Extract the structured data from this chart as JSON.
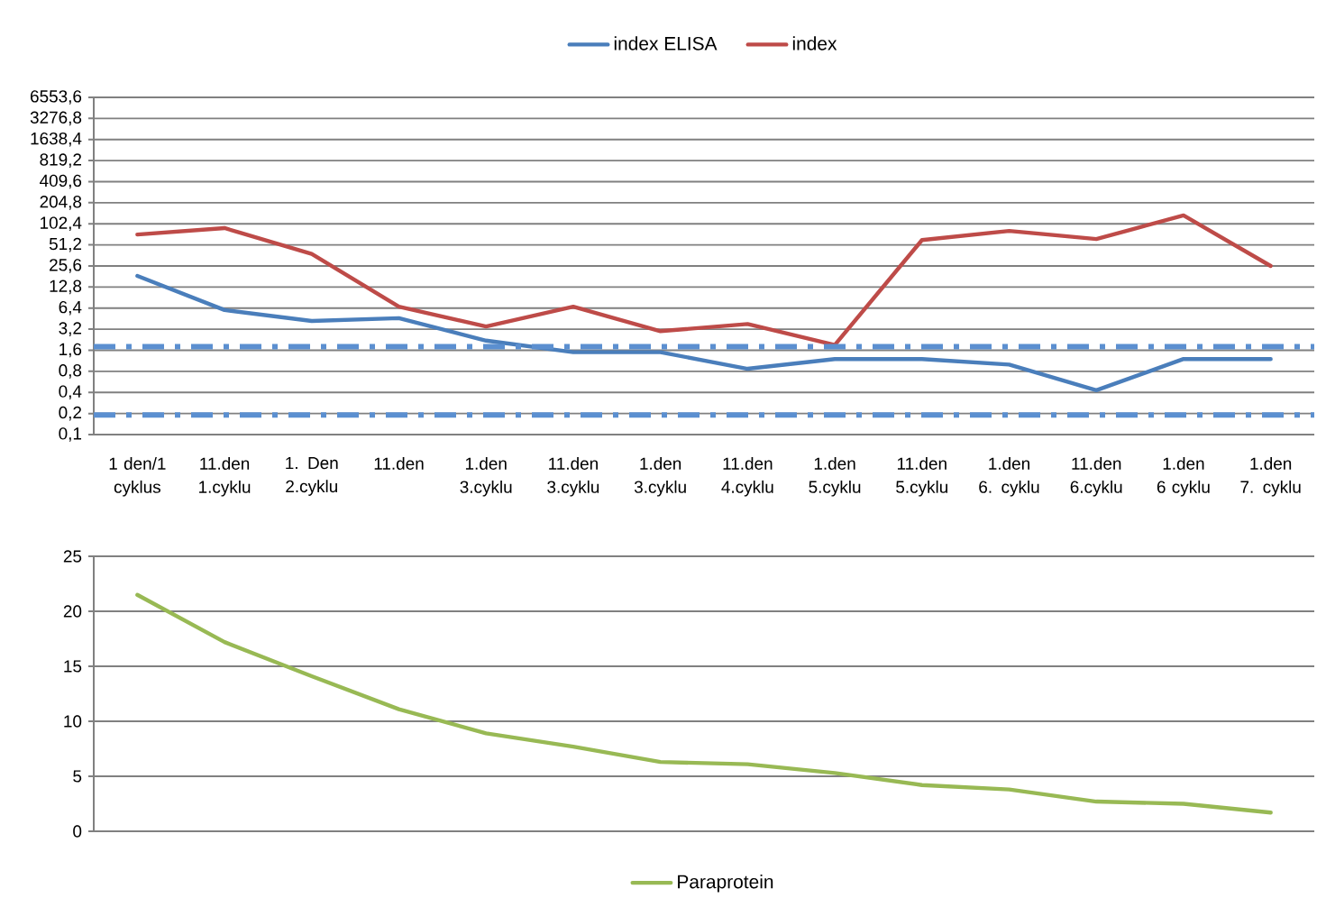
{
  "chart_data": [
    {
      "type": "line",
      "categories": [
        "1 den/1 cyklus",
        "11.den 1.cyklu",
        "1. Den 2.cyklu",
        "11.den",
        "1.den 3.cyklu",
        "11.den 3.cyklu",
        "1.den 3.cyklu",
        "11.den 4.cyklu",
        "1.den 5.cyklu",
        "11.den 5.cyklu",
        "1.den 6. cyklu",
        "11.den 6.cyklu",
        "1.den 6 cyklu",
        "1.den 7. cyklu"
      ],
      "series": [
        {
          "name": "index ELISA",
          "color": "#4a7ebb",
          "values": [
            18.5,
            6.0,
            4.2,
            4.6,
            2.2,
            1.5,
            1.5,
            0.87,
            1.2,
            1.2,
            1.0,
            0.43,
            1.2,
            1.2
          ]
        },
        {
          "name": "index",
          "color": "#be4b48",
          "values": [
            72,
            89,
            38,
            6.7,
            3.5,
            6.7,
            3.0,
            3.8,
            1.9,
            60,
            81,
            62,
            135,
            25.6
          ]
        }
      ],
      "log": "y",
      "ylim": [
        0.1,
        6553.6
      ],
      "yticks": [
        {
          "value": 0.1,
          "label": "0,1"
        },
        {
          "value": 0.2,
          "label": "0,2"
        },
        {
          "value": 0.4,
          "label": "0,4"
        },
        {
          "value": 0.8,
          "label": "0,8"
        },
        {
          "value": 1.6,
          "label": "1,6"
        },
        {
          "value": 3.2,
          "label": "3,2"
        },
        {
          "value": 6.4,
          "label": "6,4"
        },
        {
          "value": 12.8,
          "label": "12,8"
        },
        {
          "value": 25.6,
          "label": "25,6"
        },
        {
          "value": 51.2,
          "label": "51,2"
        },
        {
          "value": 102.4,
          "label": "102,4"
        },
        {
          "value": 204.8,
          "label": "204,8"
        },
        {
          "value": 409.6,
          "label": "409,6"
        },
        {
          "value": 819.2,
          "label": "819,2"
        },
        {
          "value": 1638.4,
          "label": "1638,4"
        },
        {
          "value": 3276.8,
          "label": "3276,8"
        },
        {
          "value": 6553.6,
          "label": "6553,6"
        }
      ],
      "ref_lines": [
        {
          "axis": "y",
          "value": 1.8,
          "color": "#5b8fd0",
          "line_style": "dashdot"
        },
        {
          "axis": "y",
          "value": 0.19,
          "color": "#5b8fd0",
          "line_style": "dashdot"
        }
      ],
      "grid": "y",
      "legend": "top",
      "marker": "none",
      "line_style": "solid"
    },
    {
      "type": "line",
      "categories": [
        null,
        null,
        null,
        null,
        null,
        null,
        null,
        null,
        null,
        null,
        null,
        null,
        null,
        null
      ],
      "series": [
        {
          "name": "Paraprotein",
          "color": "#98b954",
          "values": [
            21.5,
            17.2,
            14.1,
            11.1,
            8.9,
            7.7,
            6.3,
            6.1,
            5.3,
            4.2,
            3.8,
            2.7,
            2.5,
            1.7
          ]
        }
      ],
      "ylim": [
        0,
        25
      ],
      "yticks": [
        0,
        5,
        10,
        15,
        20,
        25
      ],
      "grid": "y",
      "legend": "bottom",
      "tick_labels": "y",
      "marker": "none",
      "line_style": "solid"
    }
  ]
}
